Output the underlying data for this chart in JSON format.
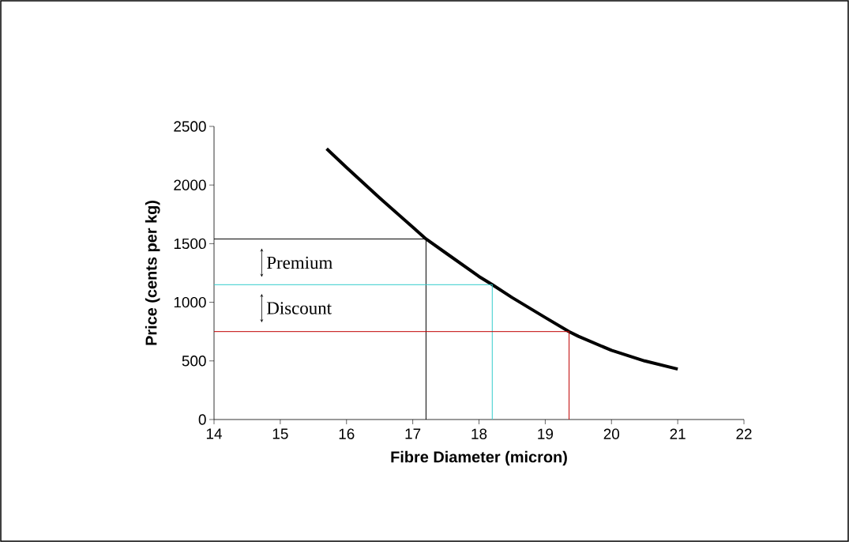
{
  "chart_data": {
    "type": "line",
    "xlabel": "Fibre Diameter (micron)",
    "ylabel": "Price (cents per kg)",
    "xlim": [
      14,
      22
    ],
    "xticks": [
      14,
      15,
      16,
      17,
      18,
      19,
      20,
      21,
      22
    ],
    "ylim": [
      0,
      2500
    ],
    "yticks": [
      0,
      500,
      1000,
      1500,
      2000,
      2500
    ],
    "grid": false,
    "marker": "none",
    "line_style": "solid",
    "series": [
      {
        "color": "#000000",
        "x": [
          15.7,
          16,
          16.5,
          17,
          17.2,
          17.5,
          18,
          18.2,
          18.5,
          19,
          19.36,
          19.5,
          20,
          20.5,
          21
        ],
        "values": [
          2310,
          2150,
          1890,
          1640,
          1540,
          1420,
          1220,
          1150,
          1040,
          870,
          750,
          710,
          590,
          500,
          430
        ]
      },
      {
        "color": "#000000",
        "x": [
          14,
          17.2,
          17.2
        ],
        "values": [
          1540,
          1540,
          0
        ]
      },
      {
        "color": "#33cccc",
        "x": [
          14,
          18.2,
          18.2
        ],
        "values": [
          1150,
          1150,
          0
        ]
      },
      {
        "color": "#c00000",
        "x": [
          14,
          19.36,
          19.36
        ],
        "values": [
          750,
          750,
          0
        ]
      }
    ],
    "annotations": [
      "Premium",
      "Discount"
    ]
  }
}
